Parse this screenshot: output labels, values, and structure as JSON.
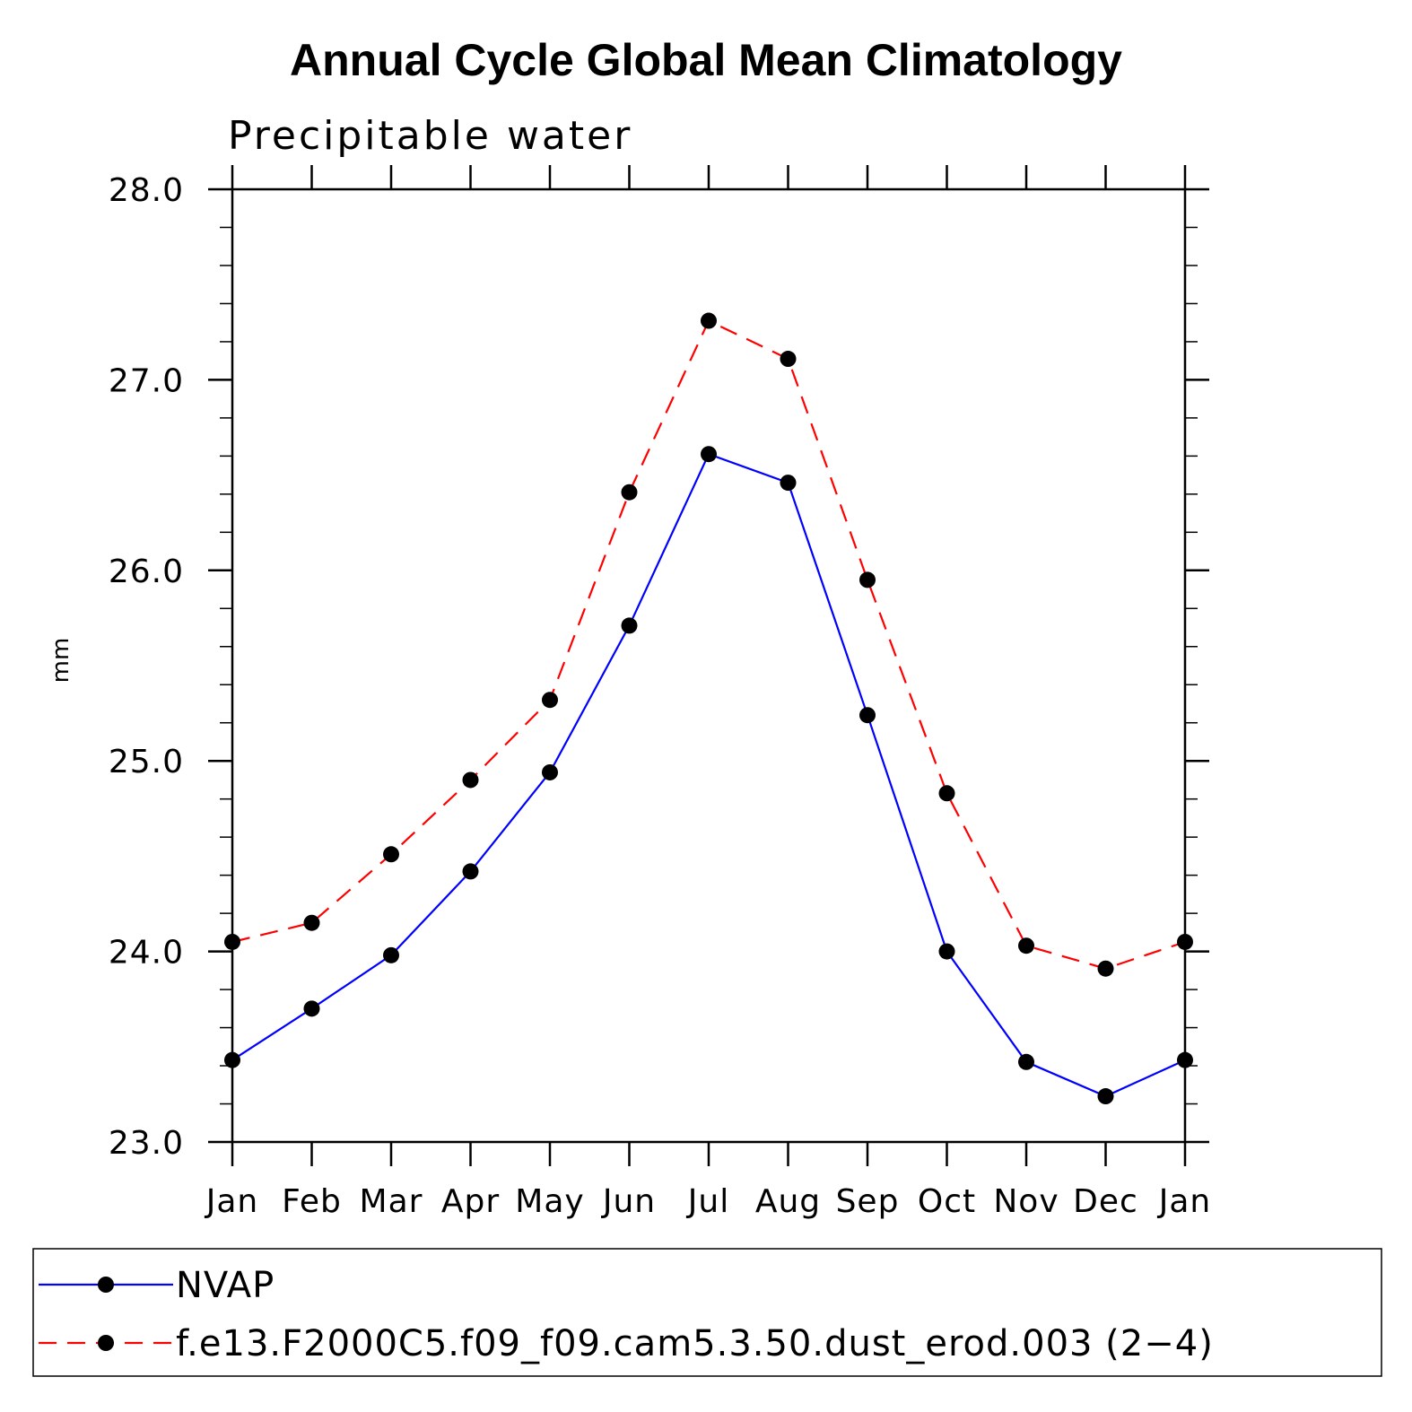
{
  "chart_data": {
    "type": "line",
    "title": "Annual Cycle Global Mean Climatology",
    "subtitle": "Precipitable water",
    "xlabel": "",
    "ylabel": "mm",
    "categories": [
      "Jan",
      "Feb",
      "Mar",
      "Apr",
      "May",
      "Jun",
      "Jul",
      "Aug",
      "Sep",
      "Oct",
      "Nov",
      "Dec",
      "Jan"
    ],
    "ylim": [
      23.0,
      28.0
    ],
    "yticks": [
      "23.0",
      "24.0",
      "25.0",
      "26.0",
      "27.0",
      "28.0"
    ],
    "grid": false,
    "legend_position": "bottom",
    "series": [
      {
        "name": "NVAP",
        "color": "#0000ff",
        "style": "solid",
        "marker": "filled-circle",
        "values": [
          23.43,
          23.7,
          23.98,
          24.42,
          24.94,
          25.71,
          26.61,
          26.46,
          25.24,
          24.0,
          23.42,
          23.24,
          23.43
        ]
      },
      {
        "name": "f.e13.F2000C5.f09_f09.cam5.3.50.dust_erod.003 (2−4)",
        "color": "#ff0000",
        "style": "dashed",
        "marker": "filled-circle",
        "values": [
          24.05,
          24.15,
          24.51,
          24.9,
          25.32,
          26.41,
          27.31,
          27.11,
          25.95,
          24.83,
          24.03,
          23.91,
          24.05
        ]
      }
    ]
  }
}
